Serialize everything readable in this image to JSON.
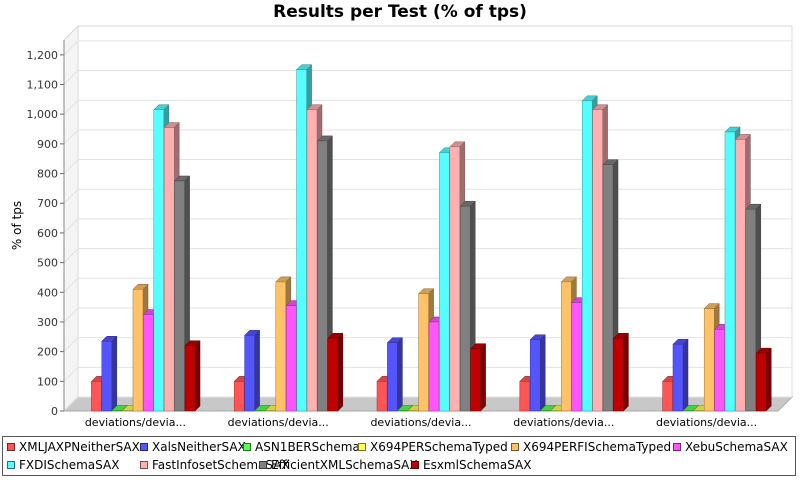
{
  "chart_data": {
    "type": "bar",
    "title": "Results per Test (% of tps)",
    "ylabel": "% of tps",
    "xlabel": "",
    "ylim": [
      0,
      1250
    ],
    "yticks": [
      0,
      100,
      200,
      300,
      400,
      500,
      600,
      700,
      800,
      900,
      1000,
      1100,
      1200
    ],
    "ytick_labels": [
      "0",
      "100",
      "200",
      "300",
      "400",
      "500",
      "600",
      "700",
      "800",
      "900",
      "1,000",
      "1,100",
      "1,200"
    ],
    "categories": [
      "deviations/devia...",
      "deviations/devia...",
      "deviations/devia...",
      "deviations/devia...",
      "deviations/devia..."
    ],
    "grid": true,
    "legend_position": "bottom",
    "series": [
      {
        "name": "XMLJAXPNeitherSAX",
        "color": "#ff5555",
        "values": [
          100,
          100,
          100,
          100,
          100
        ]
      },
      {
        "name": "XalsNeitherSAX",
        "color": "#5555ff",
        "values": [
          235,
          255,
          230,
          240,
          225
        ]
      },
      {
        "name": "ASN1BERSchema",
        "color": "#55ff55",
        "values": [
          2,
          2,
          2,
          2,
          2
        ]
      },
      {
        "name": "X694PERSchemaTyped",
        "color": "#ffff55",
        "values": [
          2,
          2,
          2,
          2,
          2
        ]
      },
      {
        "name": "X694PERFISchemaTyped",
        "color": "#ffc266",
        "values": [
          410,
          435,
          395,
          435,
          345
        ]
      },
      {
        "name": "XebuSchemaSAX",
        "color": "#ff55ff",
        "values": [
          325,
          355,
          300,
          365,
          275
        ]
      },
      {
        "name": "FXDISchemaSAX",
        "color": "#55ffff",
        "values": [
          1015,
          1150,
          870,
          1045,
          940
        ]
      },
      {
        "name": "FastInfosetSchemaSAX",
        "color": "#ffb0b0",
        "values": [
          955,
          1015,
          890,
          1015,
          915
        ]
      },
      {
        "name": "EfficientXMLSchemaSAX",
        "color": "#808080",
        "values": [
          775,
          910,
          690,
          830,
          680
        ]
      },
      {
        "name": "EsxmlSchemaSAX",
        "color": "#c00000",
        "values": [
          220,
          245,
          210,
          245,
          195
        ]
      }
    ]
  }
}
